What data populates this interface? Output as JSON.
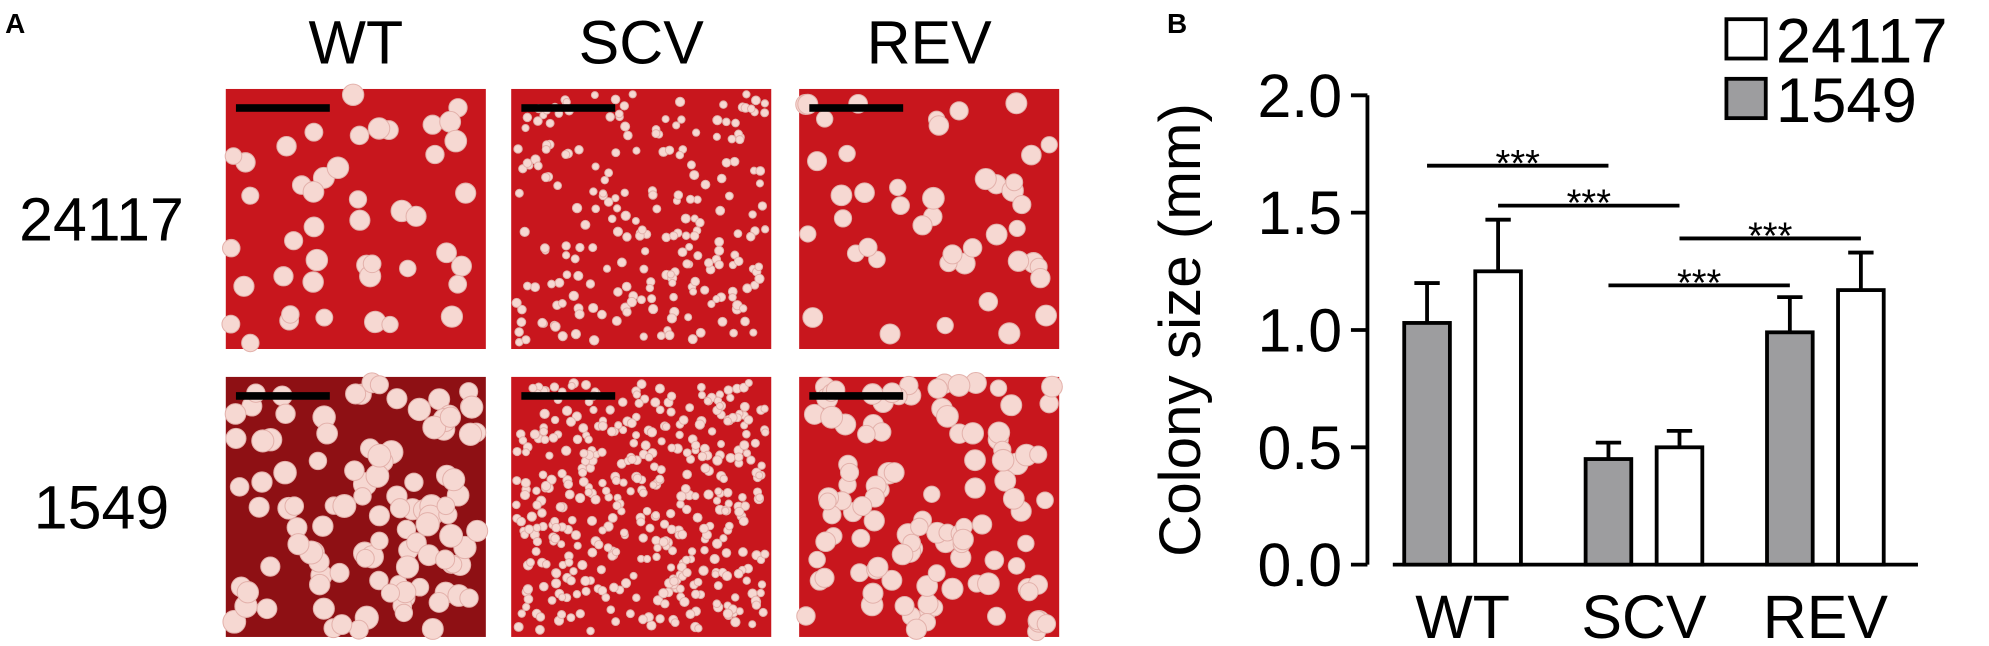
{
  "panel_a": {
    "label": "A",
    "columns": [
      "WT",
      "SCV",
      "REV"
    ],
    "rows": [
      "24117",
      "1549"
    ]
  },
  "chart_data": {
    "type": "bar",
    "panel_label": "B",
    "y_label": "Colony size (mm)",
    "categories": [
      "WT",
      "SCV",
      "REV"
    ],
    "series": [
      {
        "name": "24117",
        "color": "#ffffff",
        "values": [
          1.25,
          0.5,
          1.17
        ],
        "errors": [
          0.22,
          0.07,
          0.16
        ]
      },
      {
        "name": "1549",
        "color": "#9d9d9f",
        "values": [
          1.03,
          0.45,
          0.99
        ],
        "errors": [
          0.17,
          0.07,
          0.15
        ]
      }
    ],
    "ylim": [
      0,
      2.0
    ],
    "yticks": [
      {
        "value": 0,
        "label": "0.0"
      },
      {
        "value": 0.5,
        "label": "0.5"
      },
      {
        "value": 1,
        "label": "1.0"
      },
      {
        "value": 1.5,
        "label": "1.5"
      },
      {
        "value": 2,
        "label": "2.0"
      }
    ],
    "annotations": [
      {
        "text": "***",
        "series": "1549",
        "from": "WT",
        "to": "SCV",
        "y": 1.7
      },
      {
        "text": "***",
        "series": "24117",
        "from": "WT",
        "to": "SCV",
        "y": 1.53
      },
      {
        "text": "***",
        "series": "24117",
        "from": "SCV",
        "to": "REV",
        "y": 1.39
      },
      {
        "text": "***",
        "series": "1549",
        "from": "SCV",
        "to": "REV",
        "y": 1.19
      }
    ]
  }
}
